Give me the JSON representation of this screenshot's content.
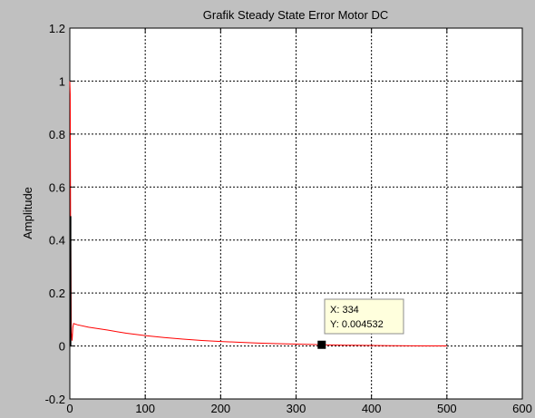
{
  "chart_data": {
    "type": "line",
    "title": "Grafik Steady State Error Motor DC",
    "xlabel": "",
    "ylabel": "Amplitude",
    "xlim": [
      0,
      600
    ],
    "ylim": [
      -0.2,
      1.2
    ],
    "xticks": [
      0,
      100,
      200,
      300,
      400,
      500,
      600
    ],
    "yticks": [
      -0.2,
      0,
      0.2,
      0.4,
      0.6,
      0.8,
      1,
      1.2
    ],
    "xtick_labels": [
      "0",
      "100",
      "200",
      "300",
      "400",
      "500",
      "600"
    ],
    "ytick_labels": [
      "-0.2",
      "0",
      "0.2",
      "0.4",
      "0.6",
      "0.8",
      "1",
      "1.2"
    ],
    "grid": true,
    "series": [
      {
        "color": "#ff0000",
        "x": [
          0,
          0.5,
          1,
          2,
          3,
          4,
          5,
          10,
          25,
          50,
          75,
          100,
          125,
          150,
          175,
          200,
          225,
          250,
          275,
          300,
          325,
          334,
          350,
          375,
          400,
          425,
          450,
          475,
          500
        ],
        "y": [
          1.0,
          0.95,
          0.49,
          0.05,
          0.02,
          0.07,
          0.085,
          0.08,
          0.071,
          0.06,
          0.048,
          0.039,
          0.032,
          0.026,
          0.021,
          0.017,
          0.014,
          0.011,
          0.009,
          0.0072,
          0.0055,
          0.004532,
          0.0035,
          0.0026,
          0.0018,
          0.0011,
          0.0006,
          0.0003,
          0.0001
        ]
      },
      {
        "color": "#000000",
        "x": [
          0.8,
          0.8
        ],
        "y": [
          0.0,
          0.49
        ]
      }
    ],
    "datatip": {
      "x": 334,
      "y": 0.004532,
      "x_text": "X: 334",
      "y_text": "Y: 0.004532"
    }
  }
}
